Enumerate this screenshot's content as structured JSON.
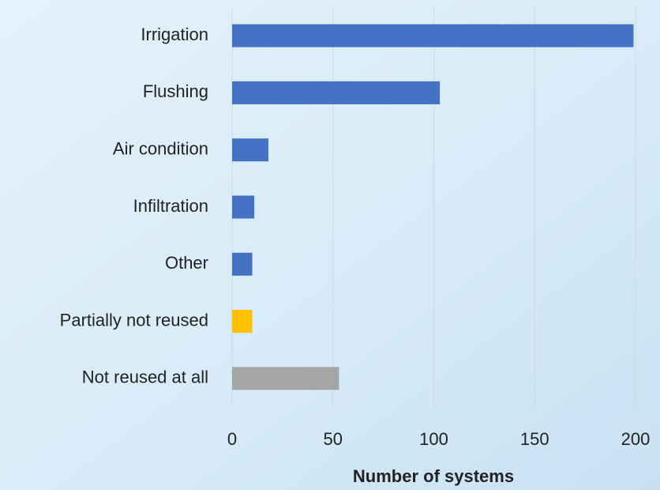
{
  "chart_data": {
    "type": "bar",
    "orientation": "horizontal",
    "x_label": "Number of systems",
    "categories": [
      "Irrigation",
      "Flushing",
      "Air condition",
      "Infiltration",
      "Other",
      "Partially not reused",
      "Not reused at all"
    ],
    "values": [
      199,
      103,
      18,
      11,
      10,
      10,
      53
    ],
    "colors": [
      "#4472c4",
      "#4472c4",
      "#4472c4",
      "#4472c4",
      "#4472c4",
      "#ffc000",
      "#a5a5a5"
    ],
    "xlim": [
      0,
      200
    ],
    "xticks": [
      0,
      50,
      100,
      150,
      200
    ],
    "grid": true
  }
}
